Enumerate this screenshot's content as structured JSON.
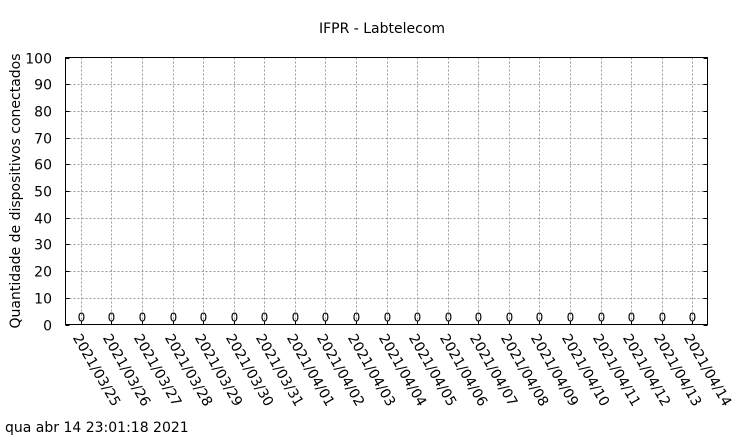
{
  "chart_data": {
    "type": "bar",
    "title": "IFPR - Labtelecom",
    "xlabel": "",
    "ylabel": "Quantidade de dispositivos conectados",
    "ylim": [
      0,
      100
    ],
    "yticks": [
      0,
      10,
      20,
      30,
      40,
      50,
      60,
      70,
      80,
      90,
      100
    ],
    "grid": true,
    "categories": [
      "2021/03/25",
      "2021/03/26",
      "2021/03/27",
      "2021/03/28",
      "2021/03/29",
      "2021/03/30",
      "2021/03/31",
      "2021/04/01",
      "2021/04/02",
      "2021/04/03",
      "2021/04/04",
      "2021/04/05",
      "2021/04/06",
      "2021/04/07",
      "2021/04/08",
      "2021/04/09",
      "2021/04/10",
      "2021/04/11",
      "2021/04/12",
      "2021/04/13",
      "2021/04/14"
    ],
    "values": [
      0,
      0,
      0,
      0,
      0,
      0,
      0,
      0,
      0,
      0,
      0,
      0,
      0,
      0,
      0,
      0,
      0,
      0,
      0,
      0,
      0
    ]
  },
  "footer": {
    "timestamp": "qua abr 14 23:01:18 2021"
  }
}
